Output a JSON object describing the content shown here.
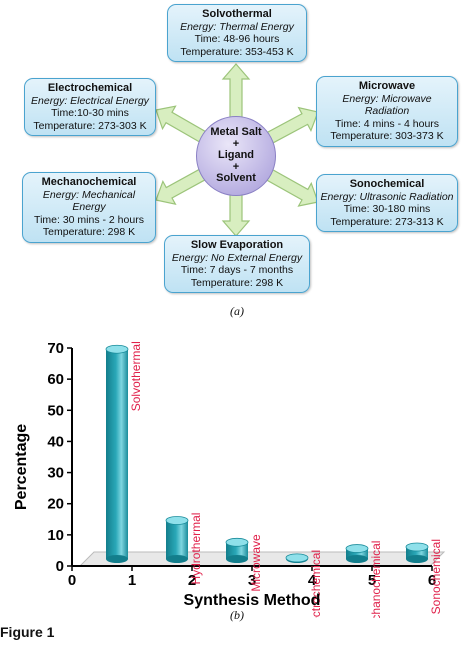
{
  "diagram": {
    "center": {
      "lines": [
        "Metal Salt",
        "+",
        "Ligand",
        "+",
        "Solvent"
      ]
    },
    "methods": [
      {
        "id": "solvothermal",
        "title": "Solvothermal",
        "energy": "Energy: Thermal Energy",
        "time": "Time: 48-96 hours",
        "temperature": "Temperature: 353-453 K"
      },
      {
        "id": "electrochemical",
        "title": "Electrochemical",
        "energy": "Energy: Electrical Energy",
        "time": "Time:10-30 mins",
        "temperature": "Temperature: 273-303 K"
      },
      {
        "id": "microwave",
        "title": "Microwave",
        "energy": "Energy: Microwave Radiation",
        "time": "Time: 4 mins - 4 hours",
        "temperature": "Temperature: 303-373 K"
      },
      {
        "id": "mechanochemical",
        "title": "Mechanochemical",
        "energy": "Energy: Mechanical Energy",
        "time": "Time: 30 mins - 2 hours",
        "temperature": "Temperature: 298 K"
      },
      {
        "id": "sonochemical",
        "title": "Sonochemical",
        "energy": "Energy: Ultrasonic Radiation",
        "time": "Time: 30-180 mins",
        "temperature": "Temperature: 273-313 K"
      },
      {
        "id": "slow-evaporation",
        "title": "Slow Evaporation",
        "energy": "Energy: No External Energy",
        "time": "Time: 7 days - 7 months",
        "temperature": "Temperature: 298 K"
      }
    ],
    "caption": "(a)",
    "colors": {
      "arrow_fill": "#d8eec0",
      "arrow_stroke": "#9cc47a"
    }
  },
  "chart_data": {
    "type": "bar",
    "categories": [
      "Solvothermal",
      "Hydrothermal",
      "Microwave",
      "Electrochemical",
      "Mechanochemical",
      "Sonochemical"
    ],
    "x": [
      0.7,
      1.7,
      2.7,
      3.7,
      4.7,
      5.7
    ],
    "values": [
      68,
      13,
      6,
      1,
      4,
      4.5
    ],
    "xlabel": "Synthesis Method",
    "ylabel": "Percentage",
    "xlim": [
      0,
      6
    ],
    "ylim": [
      0,
      70
    ],
    "xticks": [
      0,
      1,
      2,
      3,
      4,
      5,
      6
    ],
    "yticks": [
      0,
      10,
      20,
      30,
      40,
      50,
      60,
      70
    ],
    "grid": false,
    "bar_color": "#2aa8b8",
    "label_color": "#e0204a"
  },
  "chart_caption": "(b)",
  "figure_label": "Figure 1"
}
